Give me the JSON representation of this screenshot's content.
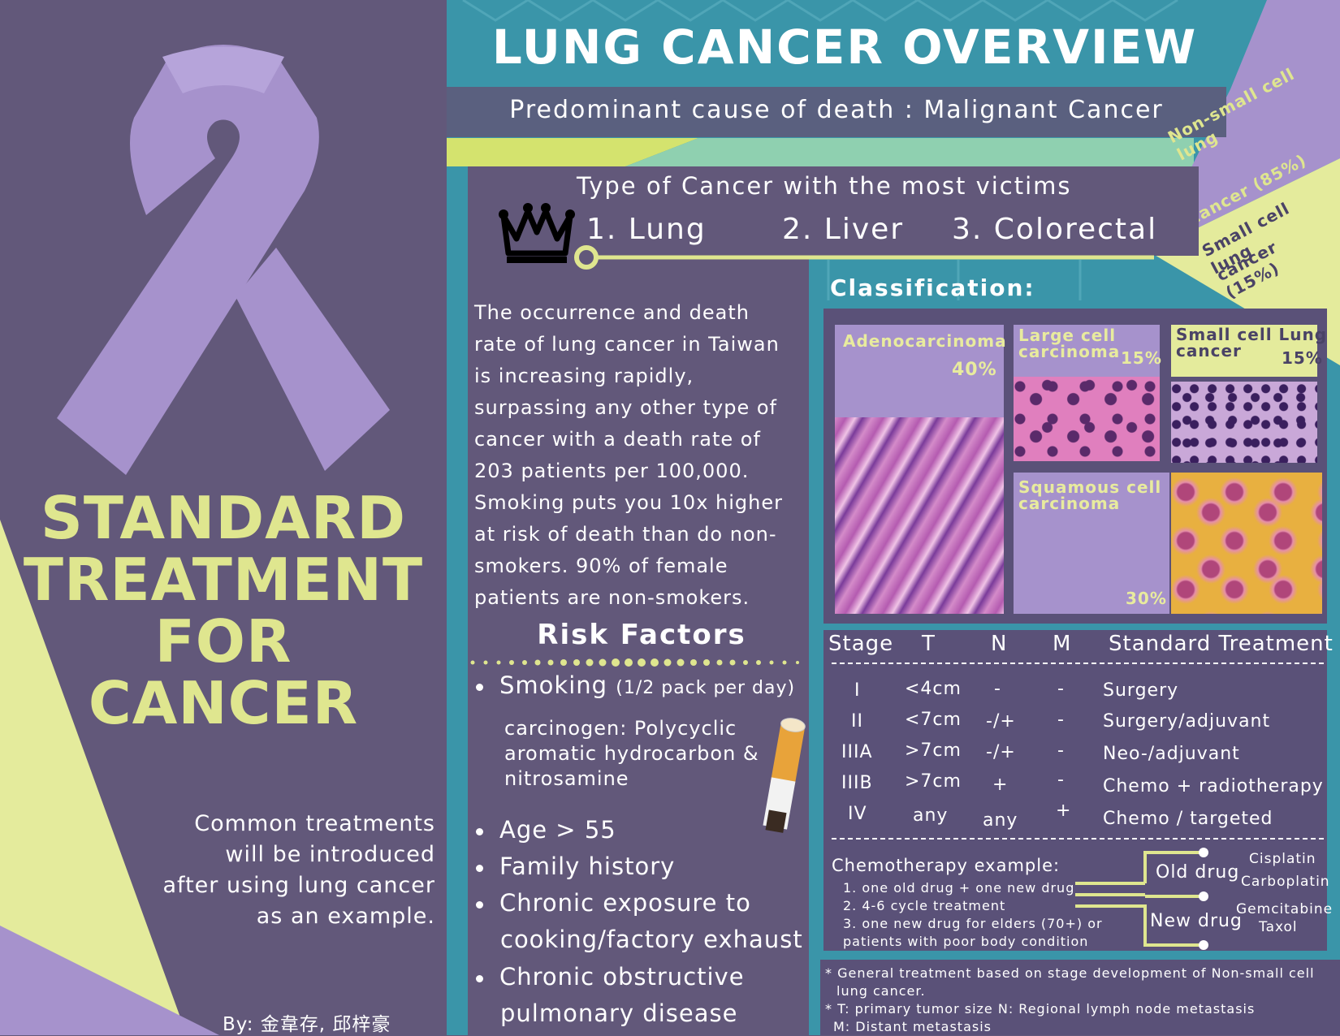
{
  "left": {
    "title_lines": [
      "STANDARD",
      "TREATMENT",
      "FOR",
      "CANCER"
    ],
    "intro_lines": [
      "Common treatments",
      "will be introduced",
      "after using lung cancer",
      "as an example."
    ],
    "byline": "By: 金韋存, 邱梓豪"
  },
  "header": {
    "title": "LUNG CANCER OVERVIEW",
    "subtitle": "Predominant cause of death : Malignant Cancer"
  },
  "types": {
    "heading": "Type of Cancer with the most victims",
    "items": [
      "1. Lung",
      "2. Liver",
      "3. Colorectal"
    ]
  },
  "corner": {
    "nsclc_line1": "Non-small cell lung",
    "nsclc_line2": "cancer (85%)",
    "sclc_line1": "Small cell lung",
    "sclc_line2": "cancer (15%)"
  },
  "paragraph": "The occurrence and death rate of lung cancer in Taiwan is increasing rapidly, surpassing any other type of cancer with a death rate of 203 patients per 100,000. Smoking puts you 10x higher at risk of death than do non-smokers. 90% of female patients are non-smokers.",
  "risk": {
    "title": "Risk Factors",
    "smoking": "Smoking",
    "smoking_detail": "(1/2 pack per day)",
    "carcinogen_lines": [
      "carcinogen: Polycyclic",
      "aromatic hydrocarbon &",
      "nitrosamine"
    ],
    "items": [
      "Age > 55",
      "Family history",
      "Chronic exposure to",
      "cooking/factory exhaust",
      "Chronic obstructive",
      "pulmonary disease"
    ]
  },
  "classification": {
    "title": "Classification:",
    "cards": [
      {
        "line1": "Adenocarcinoma",
        "line2": "",
        "pct": "40%"
      },
      {
        "line1": "Large cell",
        "line2": "carcinoma",
        "pct": "15%"
      },
      {
        "line1": "Small cell Lung",
        "line2": "cancer",
        "pct": "15%"
      },
      {
        "line1": "Squamous cell",
        "line2": "carcinoma",
        "pct": "30%"
      }
    ]
  },
  "table": {
    "headers": [
      "Stage",
      "T",
      "N",
      "M",
      "Standard Treatment"
    ],
    "rows": [
      [
        "I",
        "<4cm",
        "-",
        "-",
        "Surgery"
      ],
      [
        "II",
        "<7cm",
        "-/+",
        "-",
        "Surgery/adjuvant"
      ],
      [
        "IIIA",
        ">7cm",
        "-/+",
        "-",
        "Neo-/adjuvant"
      ],
      [
        "IIIB",
        ">7cm",
        "+",
        "-",
        "Chemo + radiotherapy"
      ],
      [
        "IV",
        "any",
        "any",
        "+",
        "Chemo / targeted"
      ]
    ]
  },
  "chemo": {
    "title": "Chemotherapy example:",
    "items": [
      "1. one old drug + one new drug",
      "2. 4-6 cycle treatment",
      "3. one new drug for elders (70+) or",
      "patients with poor body condition"
    ],
    "old_label": "Old drug",
    "new_label": "New drug",
    "old_drugs": [
      "Cisplatin",
      "Carboplatin"
    ],
    "new_drugs": [
      "Gemcitabine",
      "Taxol"
    ]
  },
  "footnotes": [
    "* General treatment based on stage development of Non-small cell",
    "lung cancer.",
    "* T: primary tumor size    N: Regional lymph node metastasis",
    "M: Distant metastasis"
  ],
  "colors": {
    "purple_dark": "#62587a",
    "lavender": "#a692cc",
    "lime": "#dfe68f",
    "teal": "#3a95a9"
  }
}
